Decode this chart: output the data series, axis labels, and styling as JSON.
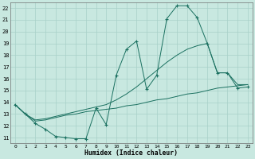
{
  "xlabel": "Humidex (Indice chaleur)",
  "bg_color": "#c8e8e0",
  "grid_color": "#a8d0c8",
  "line_color": "#1a7060",
  "xlim": [
    -0.5,
    23.5
  ],
  "ylim": [
    10.5,
    22.5
  ],
  "xticks": [
    0,
    1,
    2,
    3,
    4,
    5,
    6,
    7,
    8,
    9,
    10,
    11,
    12,
    13,
    14,
    15,
    16,
    17,
    18,
    19,
    20,
    21,
    22,
    23
  ],
  "yticks": [
    11,
    12,
    13,
    14,
    15,
    16,
    17,
    18,
    19,
    20,
    21,
    22
  ],
  "line1_x": [
    0,
    1,
    2,
    3,
    4,
    5,
    6,
    7,
    8,
    9,
    10,
    11,
    12,
    13,
    14,
    15,
    16,
    17,
    18,
    19,
    20,
    21,
    22,
    23
  ],
  "line1_y": [
    13.8,
    13.0,
    12.2,
    11.7,
    11.1,
    11.0,
    10.9,
    10.9,
    13.5,
    12.1,
    16.3,
    18.5,
    19.2,
    15.1,
    16.3,
    21.1,
    22.2,
    22.2,
    21.2,
    19.0,
    16.5,
    16.5,
    15.2,
    15.3
  ],
  "line2_x": [
    0,
    1,
    2,
    3,
    4,
    5,
    6,
    7,
    9,
    10,
    11,
    12,
    13,
    14,
    15,
    16,
    17,
    18,
    19,
    20,
    21,
    22,
    23
  ],
  "line2_y": [
    13.8,
    13.0,
    12.4,
    12.5,
    12.7,
    12.9,
    13.0,
    13.2,
    13.4,
    13.5,
    13.7,
    13.8,
    14.0,
    14.2,
    14.3,
    14.5,
    14.7,
    14.8,
    15.0,
    15.2,
    15.3,
    15.4,
    15.5
  ],
  "line3_x": [
    0,
    1,
    2,
    3,
    4,
    5,
    6,
    7,
    8,
    9,
    10,
    11,
    12,
    13,
    14,
    15,
    16,
    17,
    18,
    19,
    20,
    21,
    22,
    23
  ],
  "line3_y": [
    13.8,
    13.0,
    12.5,
    12.6,
    12.8,
    13.0,
    13.2,
    13.4,
    13.6,
    13.8,
    14.2,
    14.7,
    15.3,
    16.0,
    16.7,
    17.4,
    18.0,
    18.5,
    18.8,
    19.0,
    16.5,
    16.5,
    15.5,
    15.5
  ]
}
